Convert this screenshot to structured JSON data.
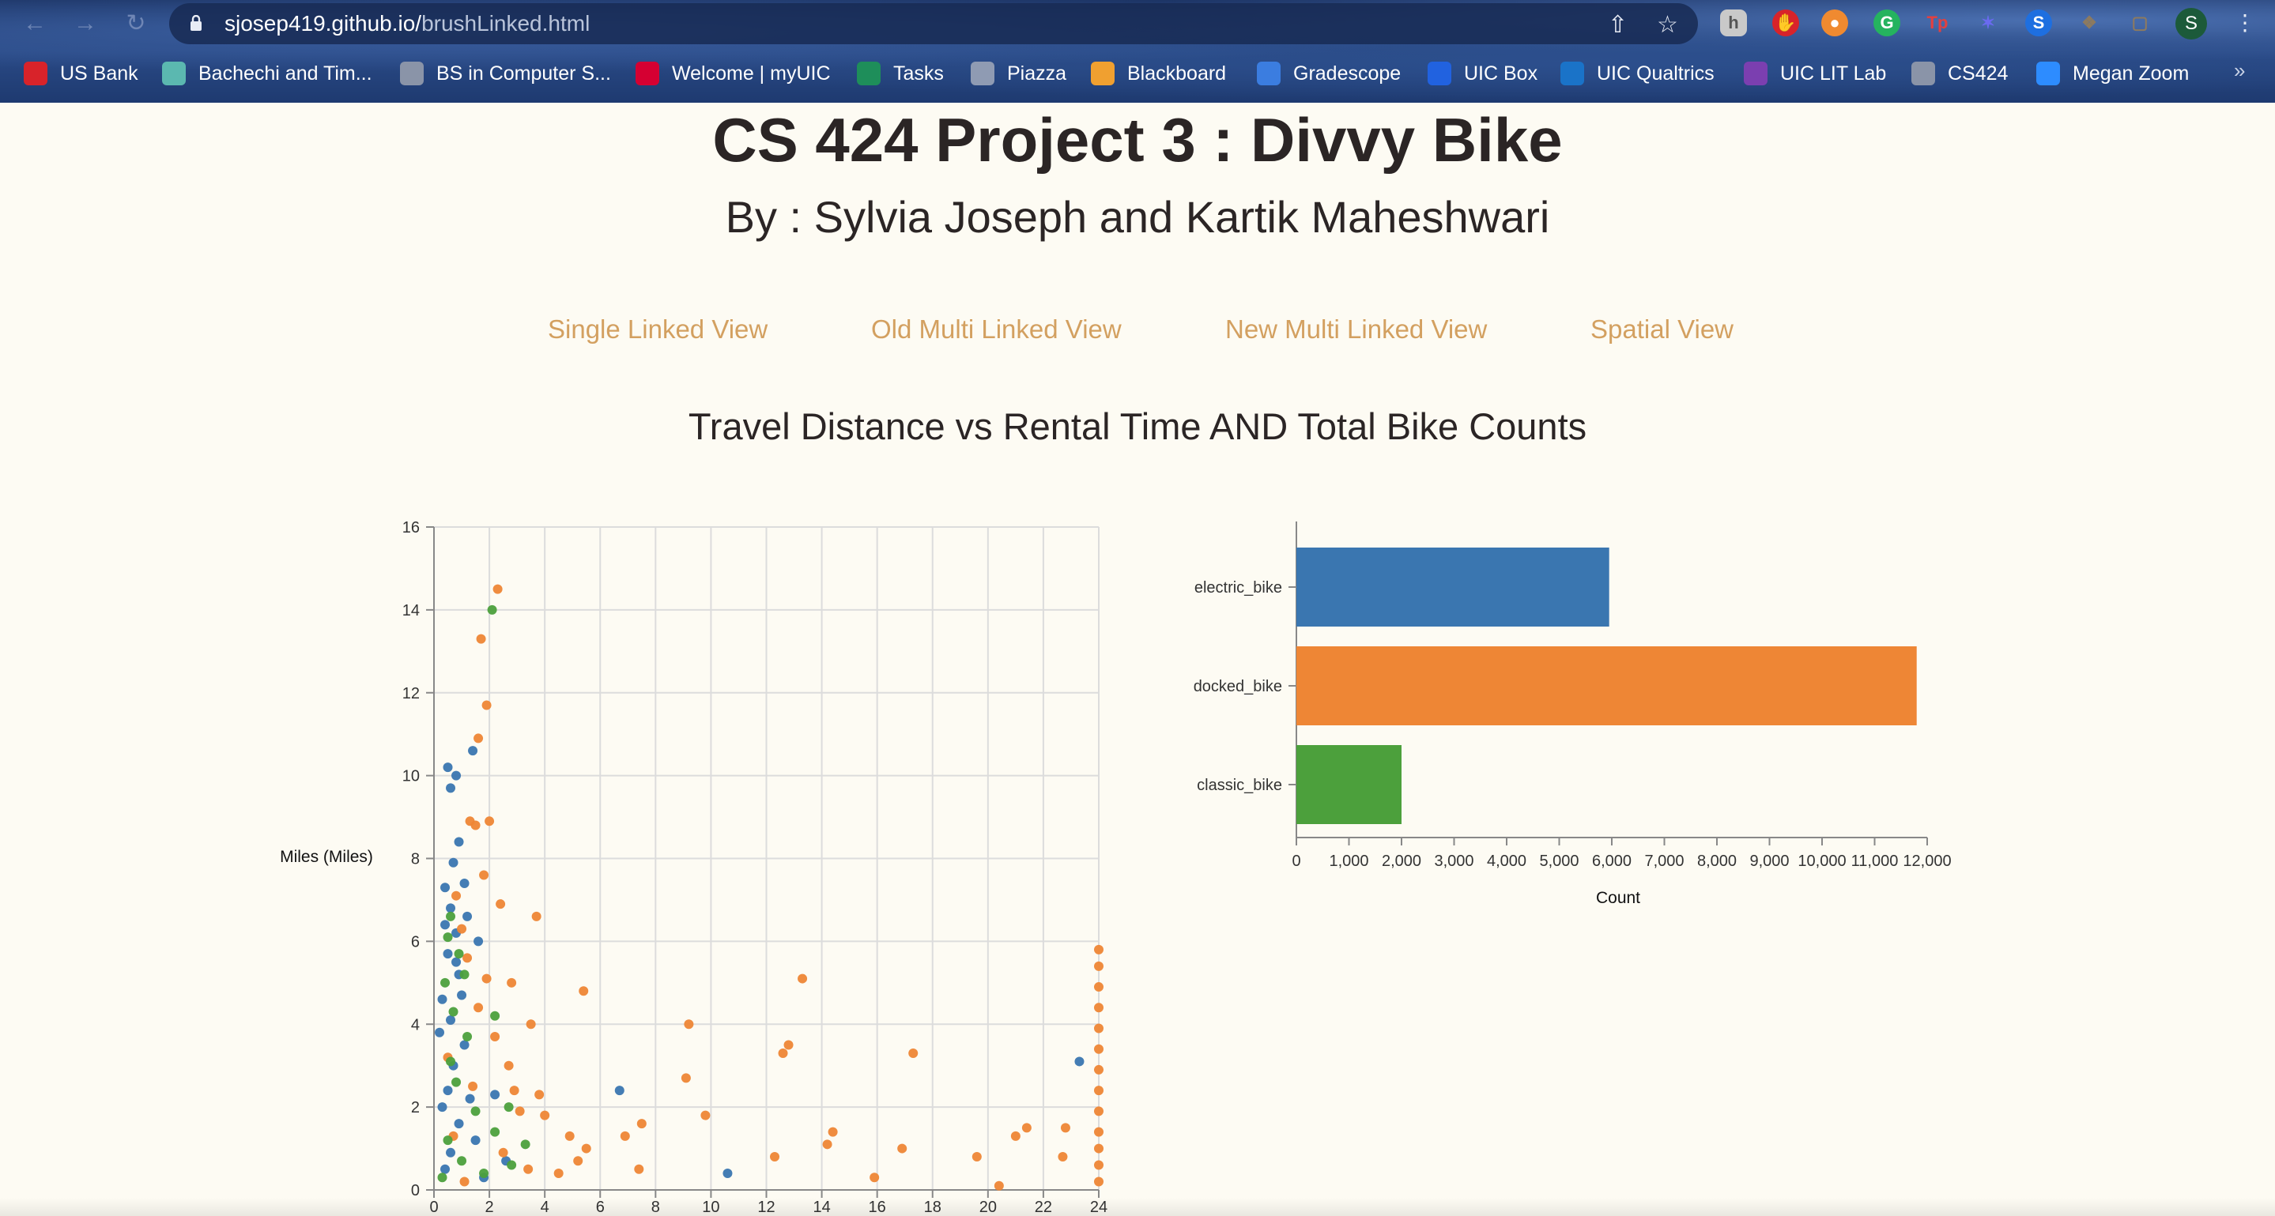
{
  "browser": {
    "url_host": "sjosep419.github.io/",
    "url_path": "brushLinked.html",
    "profile_initial": "S",
    "bookmarks": [
      {
        "label": "US Bank",
        "color": "#d8232a"
      },
      {
        "label": "Bachechi and Tim...",
        "color": "#5bb8b0"
      },
      {
        "label": "BS in Computer S...",
        "color": "#8a94a8"
      },
      {
        "label": "Welcome | myUIC",
        "color": "#d50032"
      },
      {
        "label": "Tasks",
        "color": "#1e8e5a"
      },
      {
        "label": "Piazza",
        "color": "#8f9bb3"
      },
      {
        "label": "Blackboard",
        "color": "#f0a030"
      },
      {
        "label": "Gradescope",
        "color": "#3b7de0"
      },
      {
        "label": "UIC Box",
        "color": "#2162e0"
      },
      {
        "label": "UIC Qualtrics",
        "color": "#1a73c8"
      },
      {
        "label": "UIC LIT Lab",
        "color": "#7b3fb0"
      },
      {
        "label": "CS424",
        "color": "#8a94a8"
      },
      {
        "label": "Megan Zoom",
        "color": "#2d8cff"
      }
    ]
  },
  "page": {
    "title": "CS 424 Project 3 : Divvy Bike",
    "subtitle": "By : Sylvia Joseph and Kartik Maheshwari",
    "nav": [
      {
        "label": "Single Linked View"
      },
      {
        "label": "Old Multi Linked View"
      },
      {
        "label": "New Multi Linked View"
      },
      {
        "label": "Spatial View"
      }
    ],
    "section_title": "Travel Distance vs Rental Time AND Total Bike Counts",
    "link_color": "#d3a060"
  },
  "chart_data": [
    {
      "type": "scatter",
      "ylabel": "Miles (Miles)",
      "xlabel": "",
      "xlim": [
        0,
        24
      ],
      "ylim": [
        0,
        16
      ],
      "xticks": [
        "0",
        "2",
        "4",
        "6",
        "8",
        "10",
        "12",
        "14",
        "16",
        "18",
        "20",
        "22",
        "24"
      ],
      "yticks": [
        "0",
        "2",
        "4",
        "6",
        "8",
        "10",
        "12",
        "14",
        "16"
      ],
      "grid": true,
      "series": [
        {
          "category": "electric_bike",
          "color": "#3a76b0",
          "points": [
            [
              0.5,
              10.2
            ],
            [
              0.6,
              9.7
            ],
            [
              0.8,
              10.0
            ],
            [
              1.4,
              10.6
            ],
            [
              0.9,
              8.4
            ],
            [
              0.7,
              7.9
            ],
            [
              0.4,
              7.3
            ],
            [
              0.6,
              6.8
            ],
            [
              0.8,
              6.2
            ],
            [
              0.5,
              5.7
            ],
            [
              1.2,
              6.6
            ],
            [
              1.6,
              6.0
            ],
            [
              0.9,
              5.2
            ],
            [
              0.3,
              4.6
            ],
            [
              0.6,
              4.1
            ],
            [
              1.1,
              3.5
            ],
            [
              0.7,
              3.0
            ],
            [
              0.5,
              2.4
            ],
            [
              1.3,
              2.2
            ],
            [
              2.2,
              2.3
            ],
            [
              0.9,
              1.6
            ],
            [
              1.5,
              1.2
            ],
            [
              2.6,
              0.7
            ],
            [
              0.4,
              0.5
            ],
            [
              1.8,
              0.3
            ],
            [
              6.7,
              2.4
            ],
            [
              10.6,
              0.4
            ],
            [
              23.3,
              3.1
            ],
            [
              0.2,
              3.8
            ],
            [
              0.3,
              2.0
            ],
            [
              1.0,
              4.7
            ],
            [
              0.8,
              5.5
            ],
            [
              0.4,
              6.4
            ],
            [
              1.1,
              7.4
            ],
            [
              0.6,
              0.9
            ]
          ]
        },
        {
          "category": "docked_bike",
          "color": "#ee8635",
          "points": [
            [
              2.3,
              14.5
            ],
            [
              1.7,
              13.3
            ],
            [
              1.9,
              11.7
            ],
            [
              1.6,
              10.9
            ],
            [
              1.3,
              8.9
            ],
            [
              2.0,
              8.9
            ],
            [
              1.5,
              8.8
            ],
            [
              1.8,
              7.6
            ],
            [
              2.4,
              6.9
            ],
            [
              3.7,
              6.6
            ],
            [
              2.8,
              5.0
            ],
            [
              5.4,
              4.8
            ],
            [
              3.5,
              4.0
            ],
            [
              9.2,
              4.0
            ],
            [
              13.3,
              5.1
            ],
            [
              12.8,
              3.5
            ],
            [
              12.6,
              3.3
            ],
            [
              17.3,
              3.3
            ],
            [
              9.1,
              2.7
            ],
            [
              3.8,
              2.3
            ],
            [
              4.0,
              1.8
            ],
            [
              9.8,
              1.8
            ],
            [
              7.5,
              1.6
            ],
            [
              6.9,
              1.3
            ],
            [
              14.4,
              1.4
            ],
            [
              14.2,
              1.1
            ],
            [
              16.9,
              1.0
            ],
            [
              21.4,
              1.5
            ],
            [
              21.0,
              1.3
            ],
            [
              19.6,
              0.8
            ],
            [
              12.3,
              0.8
            ],
            [
              4.9,
              1.3
            ],
            [
              5.5,
              1.0
            ],
            [
              5.2,
              0.7
            ],
            [
              7.4,
              0.5
            ],
            [
              4.5,
              0.4
            ],
            [
              15.9,
              0.3
            ],
            [
              20.4,
              0.1
            ],
            [
              22.8,
              1.5
            ],
            [
              22.7,
              0.8
            ],
            [
              24.0,
              5.8
            ],
            [
              24.0,
              5.4
            ],
            [
              24.0,
              4.9
            ],
            [
              24.0,
              4.4
            ],
            [
              24.0,
              3.9
            ],
            [
              24.0,
              3.4
            ],
            [
              24.0,
              2.9
            ],
            [
              24.0,
              2.4
            ],
            [
              24.0,
              1.9
            ],
            [
              24.0,
              1.4
            ],
            [
              24.0,
              1.0
            ],
            [
              24.0,
              0.6
            ],
            [
              24.0,
              0.2
            ],
            [
              1.0,
              6.3
            ],
            [
              0.8,
              7.1
            ],
            [
              1.2,
              5.6
            ],
            [
              1.6,
              4.4
            ],
            [
              2.2,
              3.7
            ],
            [
              2.7,
              3.0
            ],
            [
              1.4,
              2.5
            ],
            [
              3.1,
              1.9
            ],
            [
              0.7,
              1.3
            ],
            [
              2.5,
              0.9
            ],
            [
              3.4,
              0.5
            ],
            [
              1.1,
              0.2
            ],
            [
              0.5,
              3.2
            ],
            [
              1.9,
              5.1
            ],
            [
              2.9,
              2.4
            ]
          ]
        },
        {
          "category": "classic_bike",
          "color": "#4ca03c",
          "points": [
            [
              2.1,
              14.0
            ],
            [
              2.2,
              4.2
            ],
            [
              0.5,
              6.1
            ],
            [
              0.9,
              5.7
            ],
            [
              0.4,
              5.0
            ],
            [
              0.7,
              4.3
            ],
            [
              1.2,
              3.7
            ],
            [
              0.6,
              3.1
            ],
            [
              2.7,
              2.0
            ],
            [
              0.8,
              2.6
            ],
            [
              1.5,
              1.9
            ],
            [
              2.2,
              1.4
            ],
            [
              3.3,
              1.1
            ],
            [
              0.5,
              1.2
            ],
            [
              1.0,
              0.7
            ],
            [
              2.8,
              0.6
            ],
            [
              0.3,
              0.3
            ],
            [
              1.8,
              0.4
            ],
            [
              0.6,
              6.6
            ],
            [
              1.1,
              5.2
            ]
          ]
        }
      ]
    },
    {
      "type": "bar",
      "orientation": "horizontal",
      "categories": [
        "electric_bike",
        "docked_bike",
        "classic_bike"
      ],
      "values": [
        5950,
        11800,
        2000
      ],
      "colors": [
        "#3a76b0",
        "#ee8635",
        "#4ca03c"
      ],
      "xlabel": "Count",
      "ylabel": "",
      "xlim": [
        0,
        12000
      ],
      "xticks": [
        "0",
        "1,000",
        "2,000",
        "3,000",
        "4,000",
        "5,000",
        "6,000",
        "7,000",
        "8,000",
        "9,000",
        "10,000",
        "11,000",
        "12,000"
      ],
      "grid": false
    }
  ]
}
